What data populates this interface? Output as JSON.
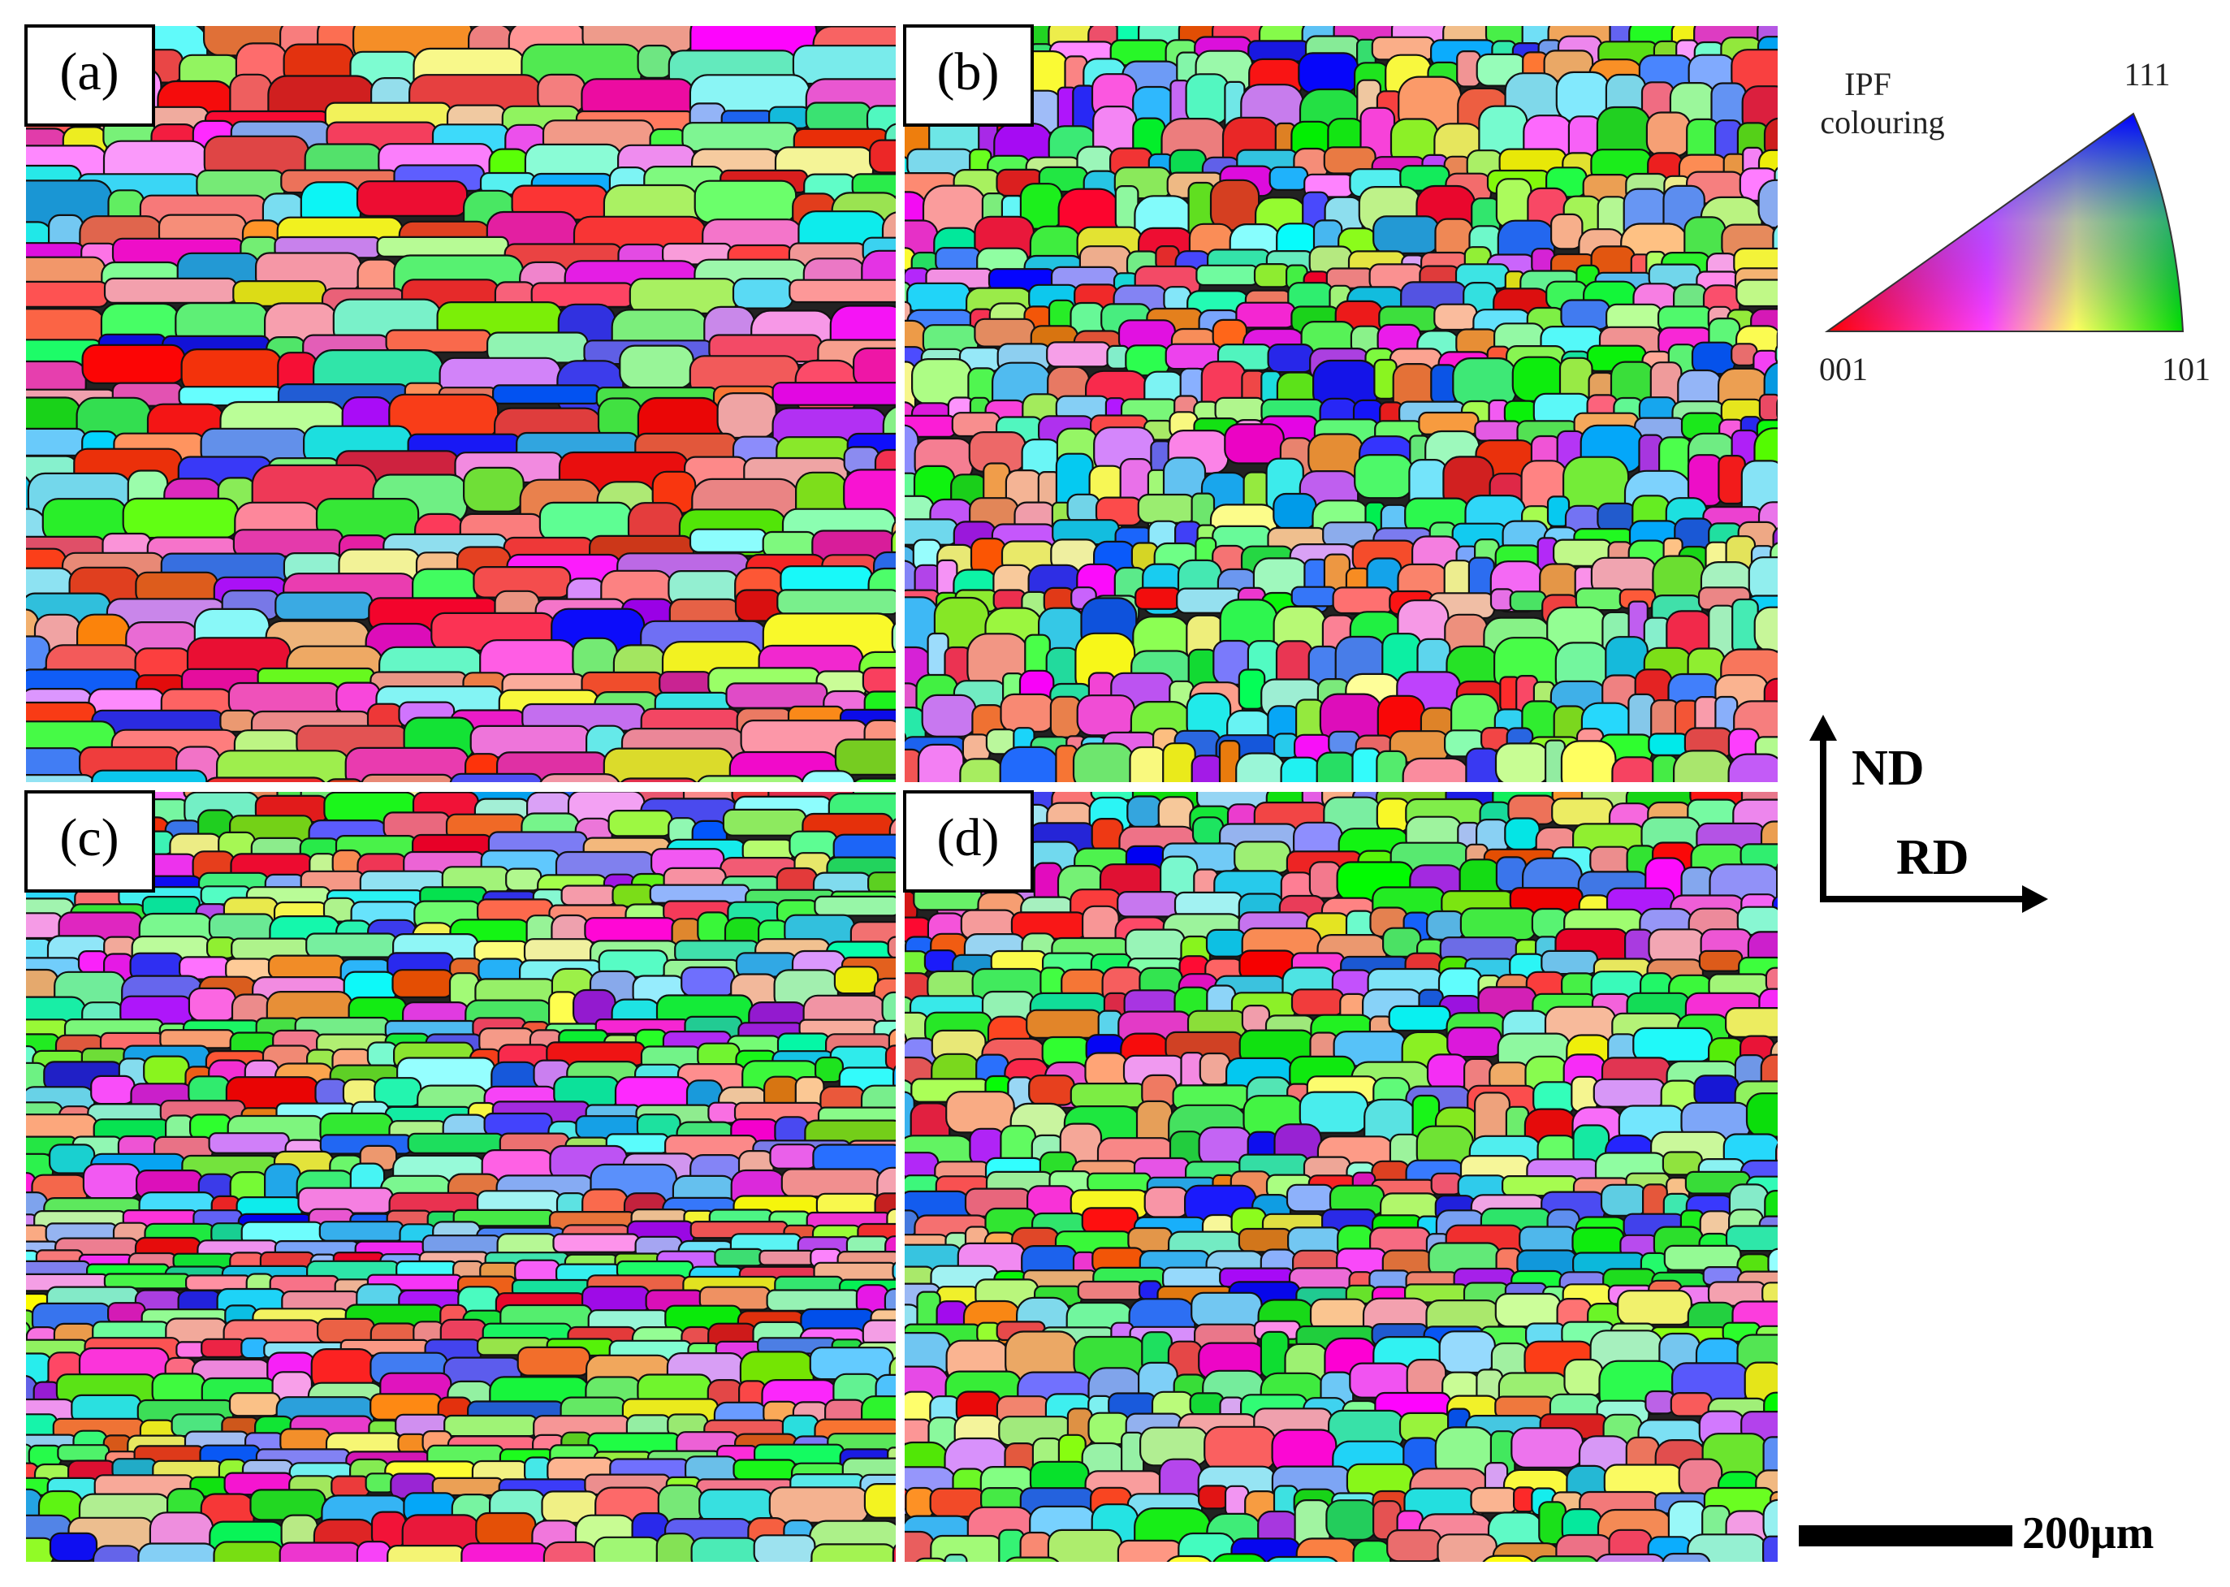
{
  "panels": [
    {
      "label": "(a)"
    },
    {
      "label": "(b)"
    },
    {
      "label": "(c)"
    },
    {
      "label": "(d)"
    }
  ],
  "legend": {
    "title_line1": "IPF",
    "title_line2": "colouring",
    "vertex_111": "111",
    "vertex_001": "001",
    "vertex_101": "101"
  },
  "axes": {
    "vertical": "ND",
    "horizontal": "RD"
  },
  "scale_bar": {
    "label": "200μm"
  }
}
